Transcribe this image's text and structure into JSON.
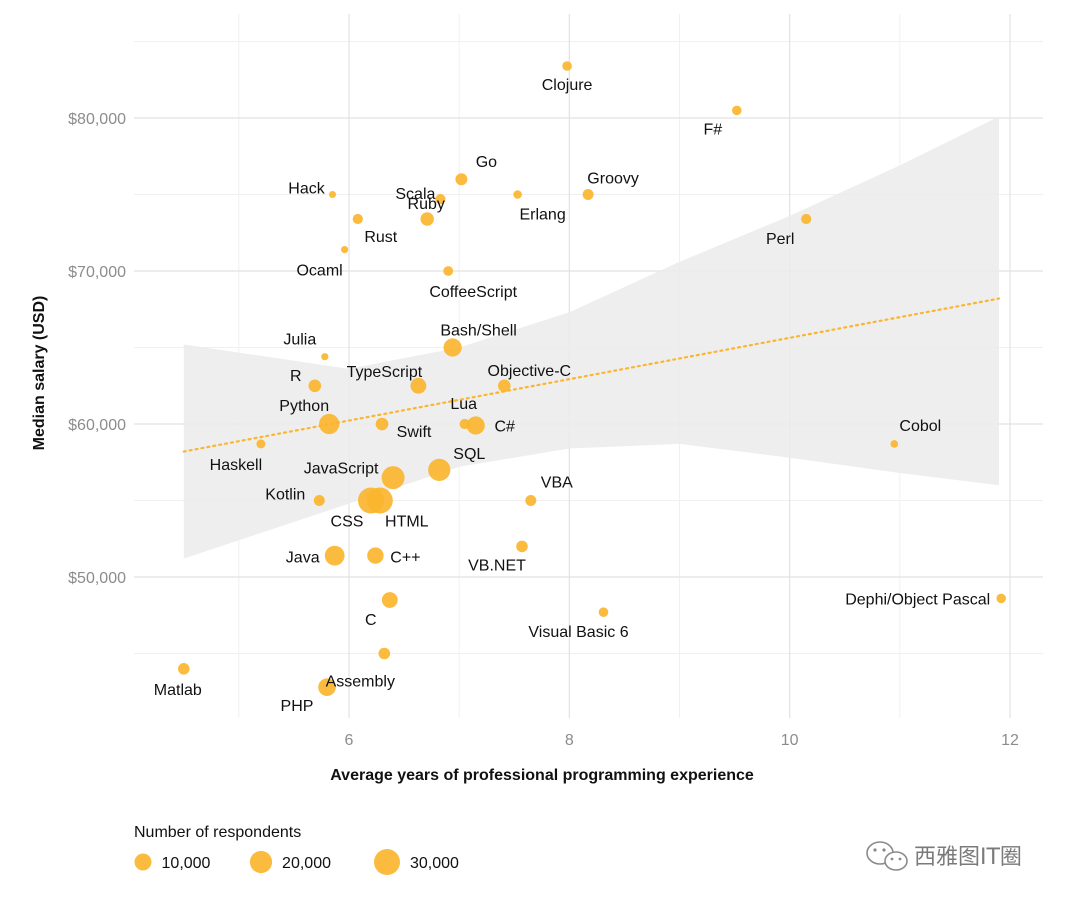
{
  "chart_data": {
    "type": "scatter",
    "xlabel": "Average years of professional programming experience",
    "ylabel": "Median salary (USD)",
    "xlim": [
      3.9,
      12.3
    ],
    "ylim": [
      42500,
      86500
    ],
    "x_ticks": [
      6,
      8,
      10,
      12
    ],
    "x_tick_labels": [
      "6",
      "8",
      "10",
      "12"
    ],
    "y_ticks": [
      50000,
      60000,
      70000,
      80000
    ],
    "y_tick_labels": [
      "$50,000",
      "$60,000",
      "$70,000",
      "$80,000"
    ],
    "grid": true,
    "color": "#fbb52e",
    "trend_color": "#fbb52e",
    "band_color": "#ebebeb",
    "points": [
      {
        "label": "Clojure",
        "x": 7.98,
        "y": 83400,
        "n": 1500
      },
      {
        "label": "F#",
        "x": 9.52,
        "y": 80500,
        "n": 1500
      },
      {
        "label": "Hack",
        "x": 5.85,
        "y": 75000,
        "n": 300
      },
      {
        "label": "Scala",
        "x": 6.83,
        "y": 74700,
        "n": 2000
      },
      {
        "label": "Go",
        "x": 7.02,
        "y": 76000,
        "n": 3500
      },
      {
        "label": "Groovy",
        "x": 8.17,
        "y": 75000,
        "n": 2500
      },
      {
        "label": "Erlang",
        "x": 7.53,
        "y": 75000,
        "n": 1000
      },
      {
        "label": "Rust",
        "x": 6.08,
        "y": 73400,
        "n": 2000
      },
      {
        "label": "Ruby",
        "x": 6.71,
        "y": 73400,
        "n": 5000
      },
      {
        "label": "Perl",
        "x": 10.15,
        "y": 73400,
        "n": 2000
      },
      {
        "label": "Ocaml",
        "x": 5.96,
        "y": 71400,
        "n": 400
      },
      {
        "label": "CoffeeScript",
        "x": 6.9,
        "y": 70000,
        "n": 1700
      },
      {
        "label": "Julia",
        "x": 5.78,
        "y": 64400,
        "n": 400
      },
      {
        "label": "Bash/Shell",
        "x": 6.94,
        "y": 65000,
        "n": 12000
      },
      {
        "label": "R",
        "x": 5.69,
        "y": 62500,
        "n": 4000
      },
      {
        "label": "TypeScript",
        "x": 6.63,
        "y": 62500,
        "n": 8000
      },
      {
        "label": "Objective-C",
        "x": 7.41,
        "y": 62500,
        "n": 4000
      },
      {
        "label": "Python",
        "x": 5.82,
        "y": 60000,
        "n": 16000
      },
      {
        "label": "Swift",
        "x": 6.3,
        "y": 60000,
        "n": 4000
      },
      {
        "label": "Lua",
        "x": 7.05,
        "y": 60000,
        "n": 2000
      },
      {
        "label": "C#",
        "x": 7.15,
        "y": 59900,
        "n": 12000
      },
      {
        "label": "Cobol",
        "x": 10.95,
        "y": 58700,
        "n": 500
      },
      {
        "label": "Haskell",
        "x": 5.2,
        "y": 58700,
        "n": 1200
      },
      {
        "label": "JavaScript",
        "x": 6.4,
        "y": 56500,
        "n": 22000
      },
      {
        "label": "SQL",
        "x": 6.82,
        "y": 57000,
        "n": 20000
      },
      {
        "label": "Kotlin",
        "x": 5.73,
        "y": 55000,
        "n": 2500
      },
      {
        "label": "VBA",
        "x": 7.65,
        "y": 55000,
        "n": 2500
      },
      {
        "label": "CSS",
        "x": 6.2,
        "y": 55000,
        "n": 30000
      },
      {
        "label": "HTML",
        "x": 6.28,
        "y": 55000,
        "n": 30000
      },
      {
        "label": "VB.NET",
        "x": 7.57,
        "y": 52000,
        "n": 3000
      },
      {
        "label": "Java",
        "x": 5.87,
        "y": 51400,
        "n": 15000
      },
      {
        "label": "C++",
        "x": 6.24,
        "y": 51400,
        "n": 9000
      },
      {
        "label": "C",
        "x": 6.37,
        "y": 48500,
        "n": 8000
      },
      {
        "label": "Visual Basic 6",
        "x": 8.31,
        "y": 47700,
        "n": 1500
      },
      {
        "label": "Dephi/Object Pascal",
        "x": 11.92,
        "y": 48600,
        "n": 1500
      },
      {
        "label": "Assembly",
        "x": 6.32,
        "y": 45000,
        "n": 3000
      },
      {
        "label": "Matlab",
        "x": 4.5,
        "y": 44000,
        "n": 3000
      },
      {
        "label": "PHP",
        "x": 5.8,
        "y": 42800,
        "n": 11000
      }
    ],
    "trend": {
      "x": [
        4.5,
        11.9
      ],
      "y": [
        58200,
        68200
      ]
    },
    "band": {
      "x": [
        4.5,
        6.0,
        7.0,
        8.0,
        9.0,
        10.0,
        11.0,
        11.9
      ],
      "upper": [
        65200,
        63600,
        65000,
        67300,
        70600,
        73600,
        76900,
        80100
      ],
      "lower": [
        51200,
        54800,
        57200,
        58400,
        58700,
        57800,
        56800,
        56000
      ]
    },
    "legend": {
      "title": "Number of respondents",
      "placement": "bottom-left",
      "items": [
        {
          "label": "10,000",
          "n": 10000
        },
        {
          "label": "20,000",
          "n": 20000
        },
        {
          "label": "30,000",
          "n": 30000
        }
      ]
    }
  },
  "watermark": {
    "text": "西雅图IT圈",
    "icon": "wechat-icon"
  }
}
